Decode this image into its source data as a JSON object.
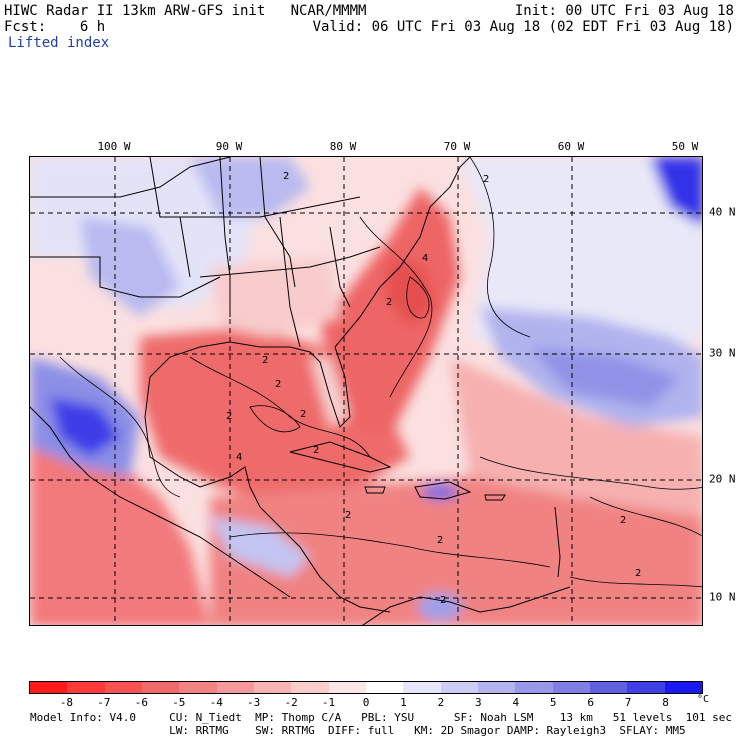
{
  "header": {
    "line1_left": "HIWC Radar II 13km ARW-GFS init   NCAR/MMMM",
    "line1_right": "Init: 00 UTC Fri 03 Aug 18",
    "line2_left": "Fcst:    6 h",
    "line2_right": "Valid: 06 UTC Fri 03 Aug 18 (02 EDT Fri 03 Aug 18)",
    "field_name": "Lifted index"
  },
  "map": {
    "longitude_labels": [
      "100 W",
      "90 W",
      "80 W",
      "70 W",
      "60 W",
      "50 W"
    ],
    "latitude_labels": [
      "40 N",
      "30 N",
      "20 N",
      "10 N"
    ],
    "contour_labels": [
      "2",
      "2",
      "2",
      "2",
      "4",
      "2",
      "2",
      "2",
      "2",
      "2",
      "2",
      "4",
      "2",
      "2",
      "2"
    ]
  },
  "colorbar": {
    "labels": [
      "-8",
      "-7",
      "-6",
      "-5",
      "-4",
      "-3",
      "-2",
      "-1",
      "0",
      "1",
      "2",
      "3",
      "4",
      "5",
      "6",
      "7",
      "8"
    ],
    "units": "°C",
    "colors": [
      "#ff1a1a",
      "#ff3a3a",
      "#f65252",
      "#f06a6a",
      "#f38282",
      "#f59a9a",
      "#f8b3b3",
      "#fbcccc",
      "#fde6e6",
      "#ffffff",
      "#e6e6fb",
      "#ccccf6",
      "#b3b3f0",
      "#9999ea",
      "#8080e4",
      "#6060e0",
      "#4040e6",
      "#1a1af0"
    ]
  },
  "footer": {
    "line1": "Model Info: V4.0     CU: N_Tiedt  MP: Thomp C/A   PBL: YSU      SF: Noah LSM    13 km   51 levels  101 sec",
    "line2": "                     LW: RRTMG    SW: RRTMG  DIFF: full   KM: 2D Smagor DAMP: Rayleigh3  SFLAY: MM5"
  }
}
